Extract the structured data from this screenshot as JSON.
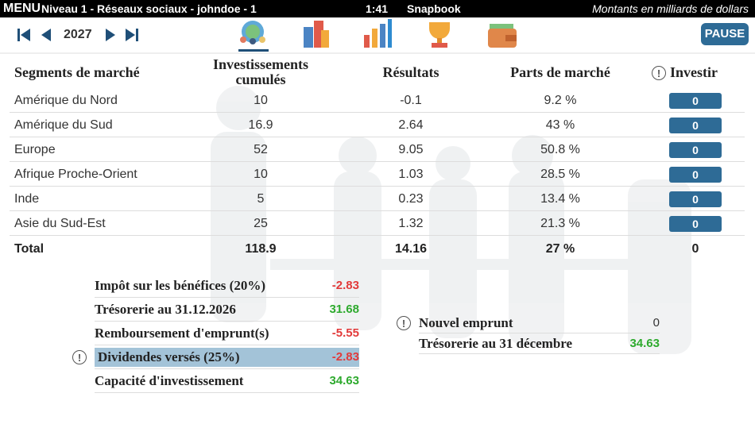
{
  "topbar": {
    "menu": "MENU",
    "context": "Niveau 1 - Réseaux sociaux - johndoe - 1",
    "time": "1:41",
    "app": "Snapbook",
    "note": "Montants en milliards de dollars"
  },
  "nav": {
    "year": "2027",
    "pause": "PAUSE"
  },
  "table": {
    "headers": [
      "Segments de marché",
      "Investissements cumulés",
      "Résultats",
      "Parts de marché",
      "Investir"
    ],
    "rows": [
      [
        "Amérique du Nord",
        10,
        -0.1,
        "9.2 %",
        0
      ],
      [
        "Amérique du Sud",
        16.9,
        2.64,
        "43 %",
        0
      ],
      [
        "Europe",
        52,
        9.05,
        "50.8 %",
        0
      ],
      [
        "Afrique Proche-Orient",
        10,
        1.03,
        "28.5 %",
        0
      ],
      [
        "Inde",
        5,
        0.23,
        "13.4 %",
        0
      ],
      [
        "Asie du Sud-Est",
        25,
        1.32,
        "21.3 %",
        0
      ]
    ],
    "total": [
      "Total",
      118.9,
      14.16,
      "27 %",
      0
    ]
  },
  "summary": {
    "rows": [
      {
        "label": "Impôt sur les bénéfices (20%)",
        "value": -2.83
      },
      {
        "label": "Trésorerie au 31.12.2026",
        "value": 31.68
      },
      {
        "label": "Remboursement d'emprunt(s)",
        "value": -5.55
      },
      {
        "label": "Dividendes versés (25%)",
        "value": -2.83
      },
      {
        "label": "Capacité d'investissement",
        "value": 34.63
      }
    ]
  },
  "loan": {
    "rows": [
      {
        "label": "Nouvel emprunt",
        "value": 0
      },
      {
        "label": "Trésorerie au 31 décembre",
        "value": 34.63
      }
    ]
  }
}
